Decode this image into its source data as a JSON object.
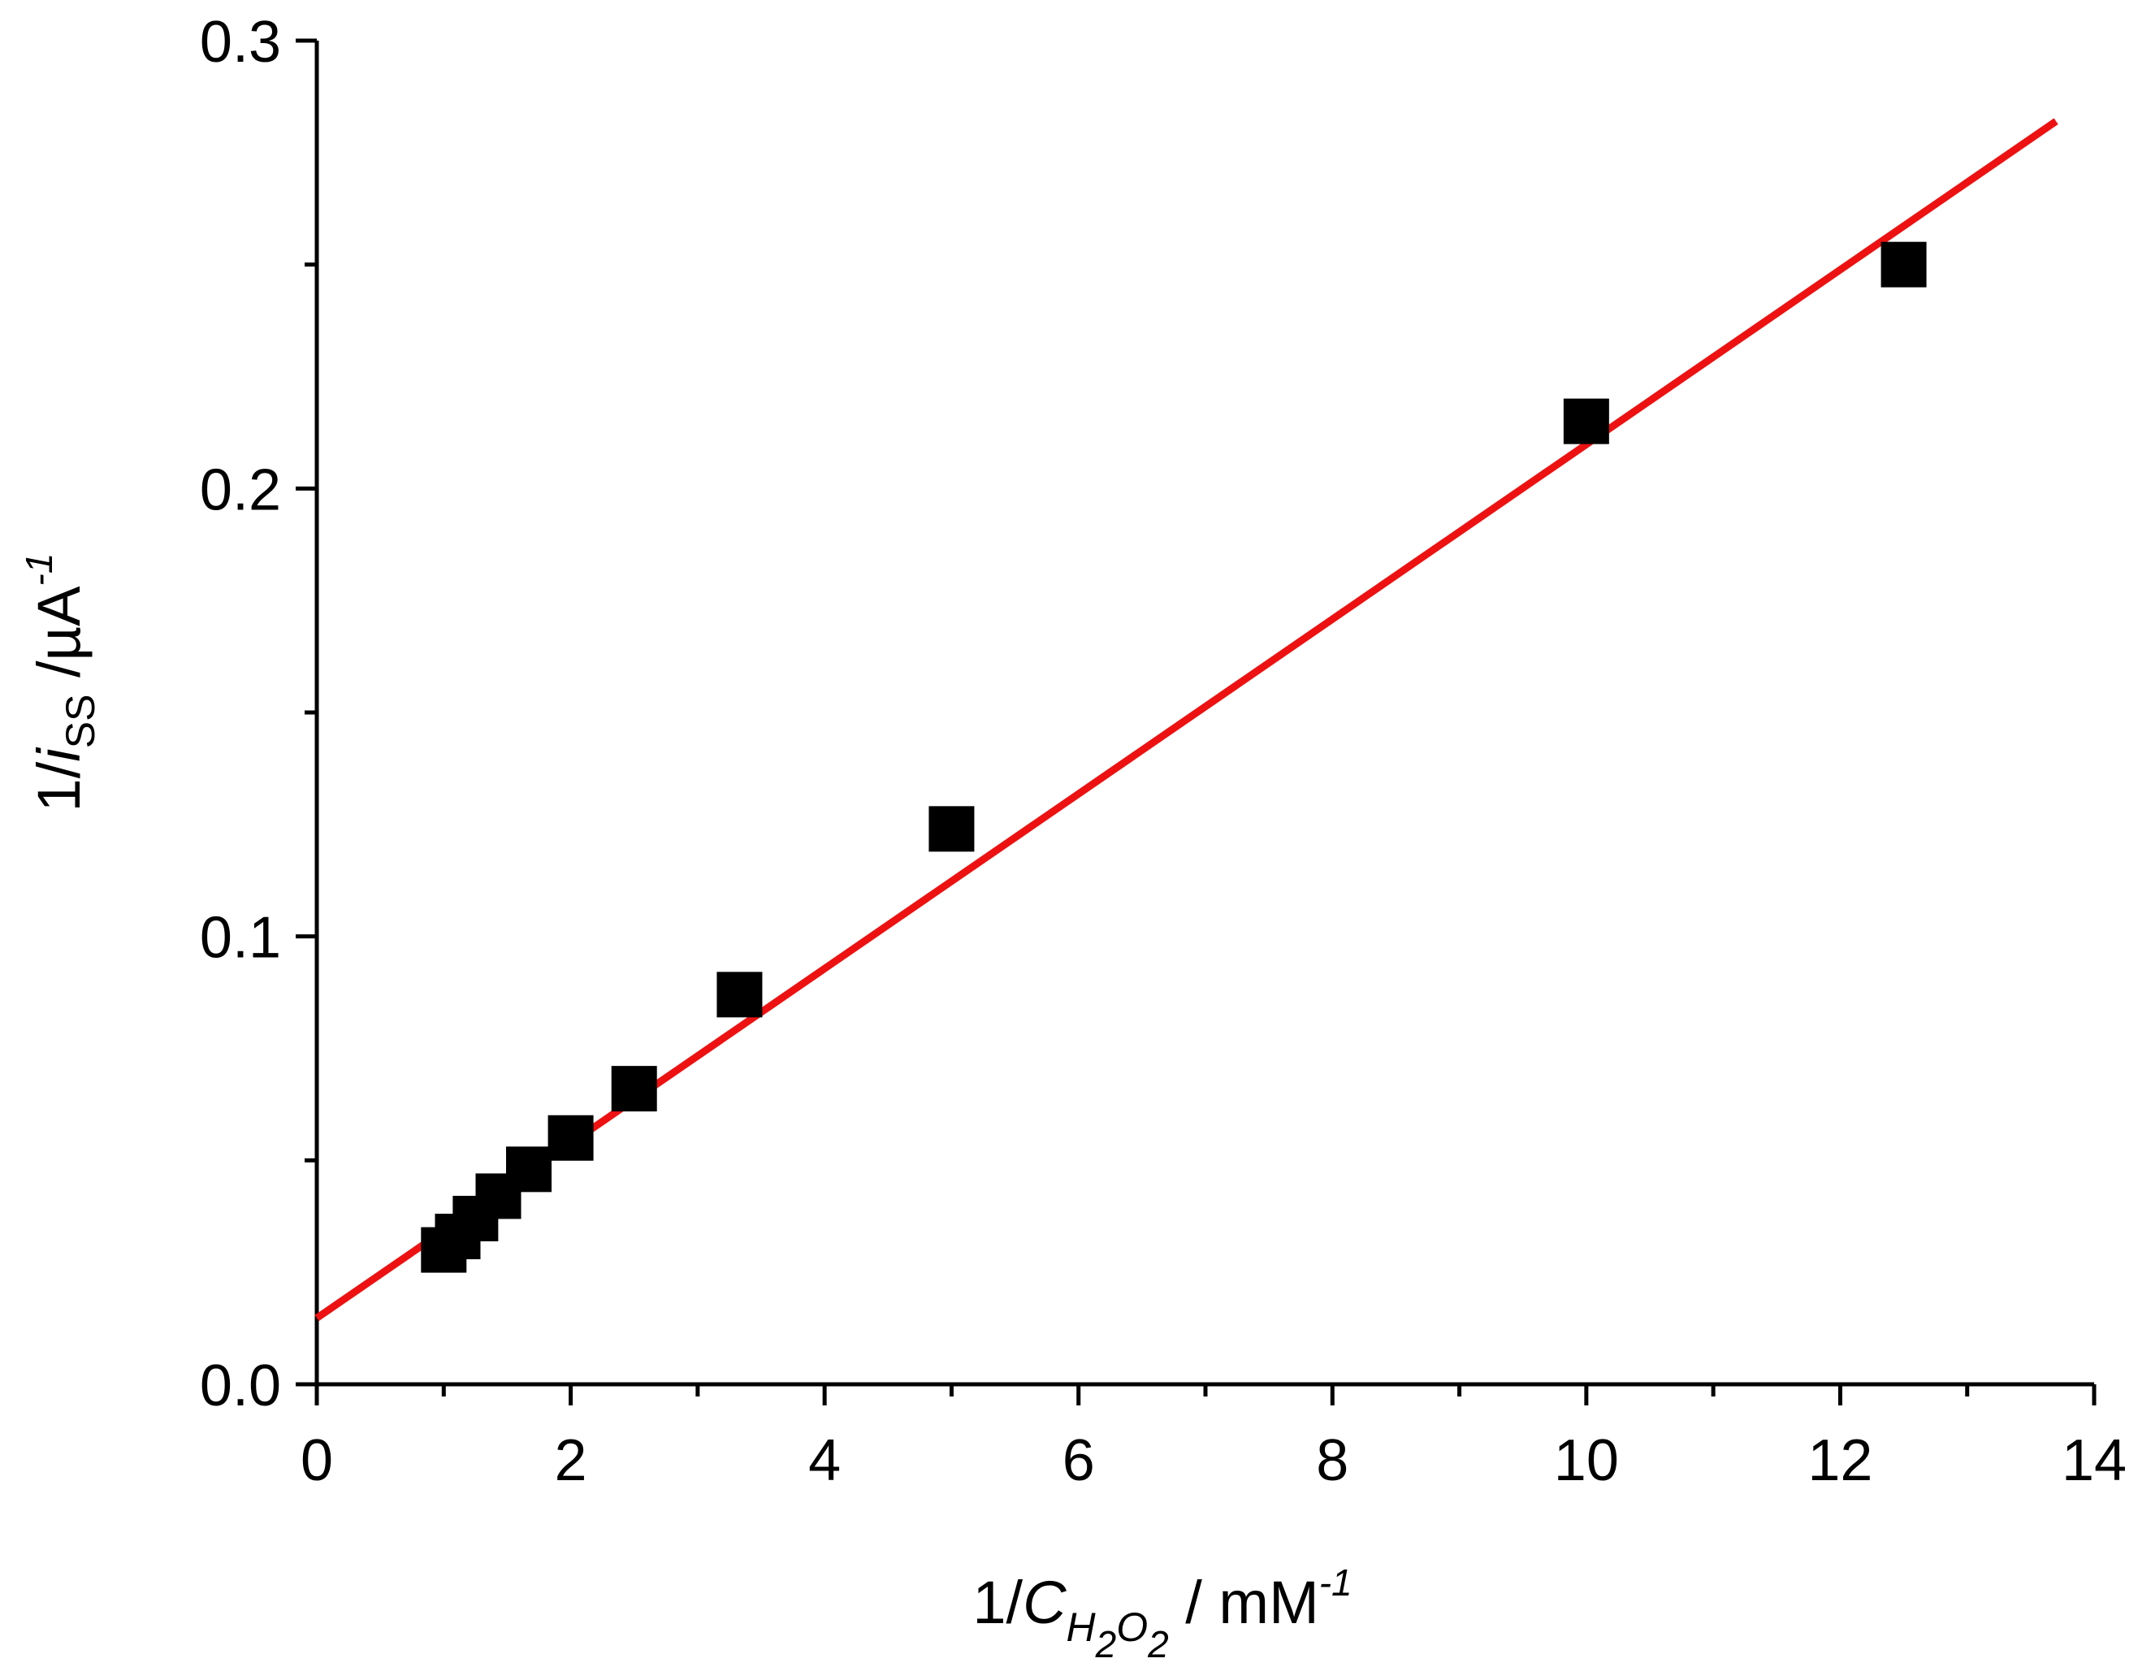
{
  "chart_data": {
    "type": "scatter",
    "title": "",
    "xlabel": {
      "prefix": "1/",
      "var": "C",
      "sub_h": "H",
      "sub_2a": "2",
      "sub_o": "O",
      "sub_2b": "2",
      "unit": " / mM",
      "sup": "-1"
    },
    "ylabel": {
      "prefix": "1/",
      "var": "i",
      "sub": "SS",
      "unit": " /µA",
      "sup": "-1"
    },
    "xlim": [
      0,
      14
    ],
    "ylim": [
      0,
      0.3
    ],
    "x_major_ticks": [
      0,
      2,
      4,
      6,
      8,
      10,
      12,
      14
    ],
    "x_tick_labels": [
      "0",
      "2",
      "4",
      "6",
      "8",
      "10",
      "12",
      "14"
    ],
    "x_minor_step": 1,
    "y_major_ticks": [
      0,
      0.1,
      0.2,
      0.3
    ],
    "y_tick_labels": [
      "0.0",
      "0.1",
      "0.2",
      "0.3"
    ],
    "y_minor_step": 0.05,
    "grid": false,
    "legend": "none",
    "series": [
      {
        "kind": "points",
        "marker": "square",
        "color": "#000000",
        "x": [
          1.0,
          1.11,
          1.25,
          1.43,
          1.67,
          2.0,
          2.5,
          3.33,
          5.0,
          10.0,
          12.5
        ],
        "y": [
          0.03,
          0.033,
          0.037,
          0.042,
          0.048,
          0.055,
          0.066,
          0.087,
          0.124,
          0.215,
          0.25
        ]
      },
      {
        "kind": "fit-line",
        "color": "#ee1111",
        "x": [
          0,
          13.7
        ],
        "y": [
          0.0148,
          0.282
        ]
      }
    ]
  }
}
